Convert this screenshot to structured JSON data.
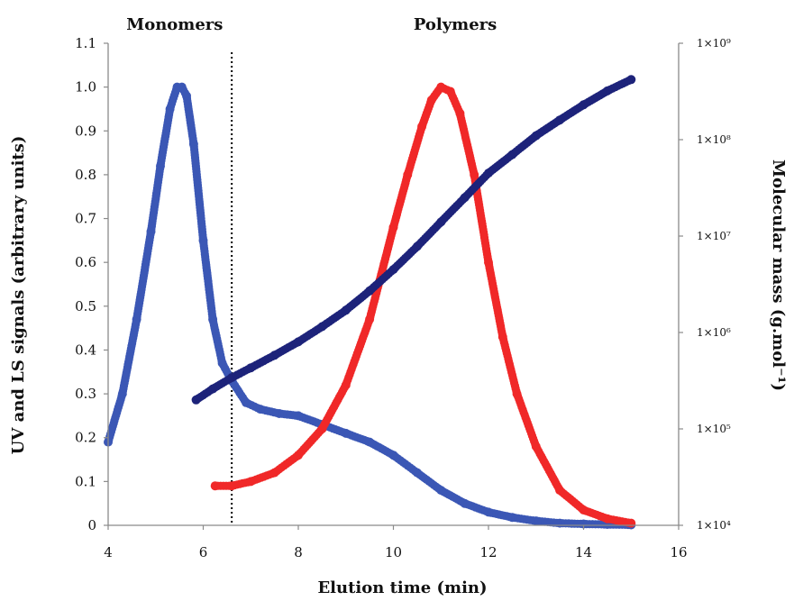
{
  "chart_data": {
    "type": "scatter",
    "x_axis": {
      "label": "Elution time (min)",
      "range": [
        4,
        16
      ],
      "ticks": [
        4,
        6,
        8,
        10,
        12,
        14,
        16
      ],
      "tick_labels": [
        "4",
        "6",
        "8",
        "10",
        "12",
        "14",
        "16"
      ]
    },
    "y_axis_left": {
      "label": "UV and LS signals (arbitrary units)",
      "range": [
        0,
        1.1
      ],
      "ticks": [
        0,
        0.1,
        0.2,
        0.3,
        0.4,
        0.5,
        0.6,
        0.7,
        0.8,
        0.9,
        1.0,
        1.1
      ],
      "tick_labels": [
        "0",
        "0.1",
        "0.2",
        "0.3",
        "0.4",
        "0.5",
        "0.6",
        "0.7",
        "0.8",
        "0.9",
        "1.0",
        "1.1"
      ]
    },
    "y_axis_right": {
      "label": "Molecular mass (g.mol⁻¹)",
      "scale": "log",
      "range": [
        10000,
        1000000000
      ],
      "ticks": [
        10000,
        100000,
        1000000,
        10000000,
        100000000,
        1000000000
      ],
      "tick_labels": [
        "1×10⁴",
        "1×10⁵",
        "1×10⁶",
        "1×10⁷",
        "1×10⁸",
        "1×10⁹"
      ]
    },
    "annotations": [
      {
        "text": "Monomers",
        "x": 5.4
      },
      {
        "text": "Polymers",
        "x": 11.3
      }
    ],
    "vline": {
      "x": 6.6,
      "style": "dotted",
      "color": "#000000"
    },
    "series": [
      {
        "axis": "left",
        "color": "#3b57b5",
        "x": [
          4.0,
          4.3,
          4.6,
          4.9,
          5.1,
          5.3,
          5.45,
          5.55,
          5.65,
          5.8,
          6.0,
          6.2,
          6.4,
          6.6,
          6.9,
          7.2,
          7.6,
          8.0,
          8.5,
          9.0,
          9.5,
          10.0,
          10.5,
          11.0,
          11.5,
          12.0,
          12.5,
          13.0,
          13.5,
          14.0,
          14.5,
          15.0
        ],
        "y": [
          0.19,
          0.3,
          0.47,
          0.67,
          0.82,
          0.95,
          1.0,
          1.0,
          0.98,
          0.87,
          0.65,
          0.47,
          0.37,
          0.33,
          0.28,
          0.265,
          0.255,
          0.25,
          0.23,
          0.21,
          0.19,
          0.16,
          0.12,
          0.08,
          0.05,
          0.03,
          0.018,
          0.01,
          0.005,
          0.003,
          0.002,
          0.001
        ]
      },
      {
        "axis": "left",
        "color": "#f02828",
        "x": [
          6.25,
          6.6,
          7.0,
          7.5,
          8.0,
          8.5,
          9.0,
          9.5,
          10.0,
          10.3,
          10.6,
          10.8,
          11.0,
          11.2,
          11.4,
          11.7,
          12.0,
          12.3,
          12.6,
          13.0,
          13.5,
          14.0,
          14.5,
          15.0
        ],
        "y": [
          0.09,
          0.09,
          0.1,
          0.12,
          0.16,
          0.22,
          0.32,
          0.47,
          0.68,
          0.8,
          0.91,
          0.97,
          1.0,
          0.99,
          0.94,
          0.8,
          0.6,
          0.43,
          0.3,
          0.18,
          0.08,
          0.035,
          0.015,
          0.005
        ]
      },
      {
        "axis": "right",
        "color": "#1d237a",
        "x": [
          5.85,
          6.2,
          6.6,
          7.0,
          7.5,
          8.0,
          8.5,
          9.0,
          9.5,
          10.0,
          10.5,
          11.0,
          11.5,
          12.0,
          12.5,
          13.0,
          13.5,
          14.0,
          14.5,
          15.0
        ],
        "y": [
          200000,
          260000,
          340000,
          430000,
          580000,
          800000,
          1150000,
          1700000,
          2700000,
          4500000,
          7800000,
          14000000,
          25000000,
          45000000,
          70000000,
          110000000,
          160000000,
          230000000,
          320000000,
          420000000
        ]
      }
    ]
  }
}
